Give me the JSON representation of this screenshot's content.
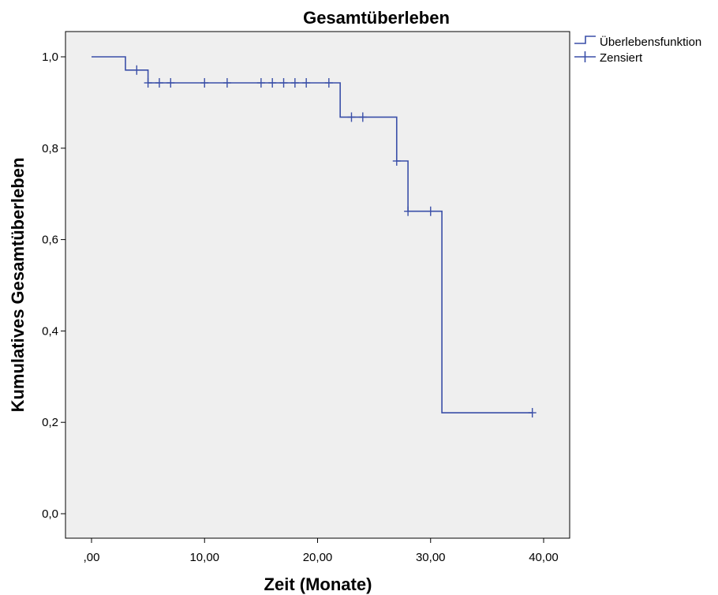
{
  "chart_data": {
    "type": "line",
    "title": "Gesamtüberleben",
    "xlabel": "Zeit (Monate)",
    "ylabel": "Kumulatives Gesamtüberleben",
    "xlim": [
      0,
      40
    ],
    "ylim": [
      0,
      1
    ],
    "grid": false,
    "legend_position": "top-right",
    "x_ticks": [
      {
        "value": 0,
        "label": ",00"
      },
      {
        "value": 10,
        "label": "10,00"
      },
      {
        "value": 20,
        "label": "20,00"
      },
      {
        "value": 30,
        "label": "30,00"
      },
      {
        "value": 40,
        "label": "40,00"
      }
    ],
    "y_ticks": [
      {
        "value": 0.0,
        "label": "0,0"
      },
      {
        "value": 0.2,
        "label": "0,2"
      },
      {
        "value": 0.4,
        "label": "0,4"
      },
      {
        "value": 0.6,
        "label": "0,6"
      },
      {
        "value": 0.8,
        "label": "0,8"
      },
      {
        "value": 1.0,
        "label": "1,0"
      }
    ],
    "series": [
      {
        "name": "Überlebensfunktion",
        "kind": "step",
        "color": "#3a4fa8",
        "x": [
          0,
          3,
          5,
          22,
          27,
          28,
          31,
          39
        ],
        "y": [
          1.0,
          0.971,
          0.943,
          0.868,
          0.772,
          0.662,
          0.221,
          0.221
        ]
      },
      {
        "name": "Zensiert",
        "kind": "censor-marks",
        "color": "#3a4fa8",
        "x": [
          4,
          5,
          6,
          7,
          10,
          12,
          15,
          16,
          17,
          18,
          19,
          21,
          23,
          24,
          27,
          28,
          30,
          39
        ],
        "y": [
          0.971,
          0.943,
          0.943,
          0.943,
          0.943,
          0.943,
          0.943,
          0.943,
          0.943,
          0.943,
          0.943,
          0.943,
          0.868,
          0.868,
          0.772,
          0.662,
          0.662,
          0.221
        ]
      }
    ],
    "colors": {
      "plot_background": "#efefef",
      "series": "#3a4fa8",
      "frame": "#000000"
    }
  }
}
